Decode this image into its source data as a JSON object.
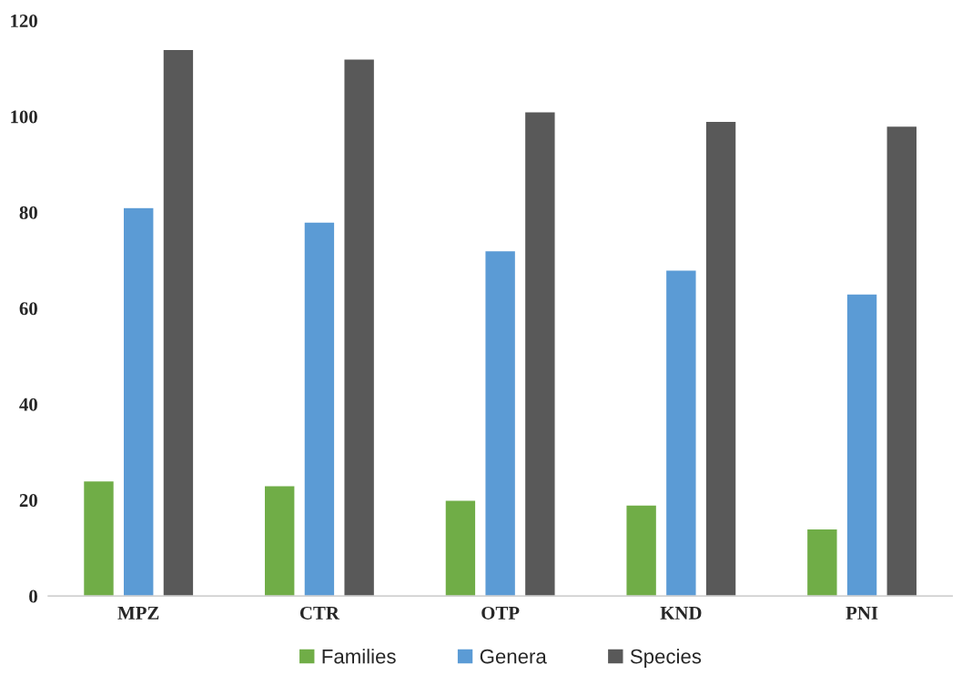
{
  "chart_data": {
    "type": "bar",
    "categories": [
      "MPZ",
      "CTR",
      "OTP",
      "KND",
      "PNI"
    ],
    "series": [
      {
        "name": "Families",
        "color": "#70ad47",
        "values": [
          24,
          23,
          20,
          19,
          14
        ]
      },
      {
        "name": "Genera",
        "color": "#5b9bd5",
        "values": [
          81,
          78,
          72,
          68,
          63
        ]
      },
      {
        "name": "Species",
        "color": "#595959",
        "values": [
          114,
          112,
          101,
          99,
          98
        ]
      }
    ],
    "ylim": [
      0,
      120
    ],
    "yticks": [
      0,
      20,
      40,
      60,
      80,
      100,
      120
    ],
    "grid": false,
    "legend": "bottom"
  }
}
